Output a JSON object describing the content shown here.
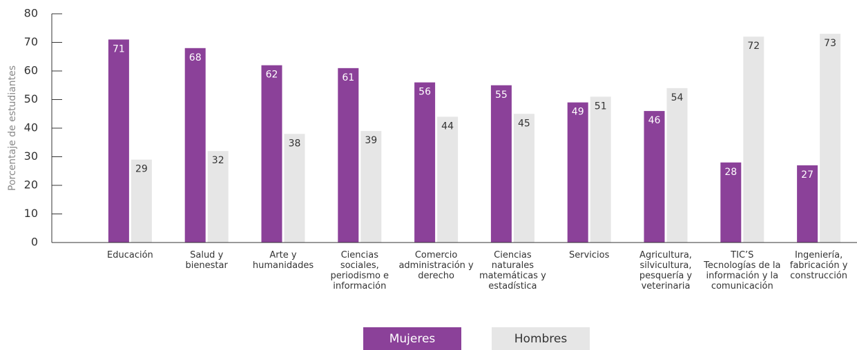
{
  "chart_data": {
    "type": "bar",
    "categories": [
      "Educación",
      "Salud y bienestar",
      "Arte y humanidades",
      "Ciencias sociales, periodismo e información",
      "Comercio administración y derecho",
      "Ciencias naturales matemáticas y estadística",
      "Servicios",
      "Agricultura, silvicultura, pesquería y veterinaria",
      "TIC’S Tecnologías de la información y la comunicación",
      "Ingeniería, fabricación y construcción"
    ],
    "series": [
      {
        "name": "Mujeres",
        "color": "#8b4199",
        "values": [
          71,
          68,
          62,
          61,
          56,
          55,
          49,
          46,
          28,
          27
        ]
      },
      {
        "name": "Hombres",
        "color": "#e6e6e6",
        "values": [
          29,
          32,
          38,
          39,
          44,
          45,
          51,
          54,
          72,
          73
        ]
      }
    ],
    "y_label": "Porcentaje de estudiantes",
    "ylim": [
      0,
      80
    ],
    "yticks": [
      0,
      10,
      20,
      30,
      40,
      50,
      60,
      70,
      80
    ],
    "grid": false,
    "legend": "bottom"
  }
}
